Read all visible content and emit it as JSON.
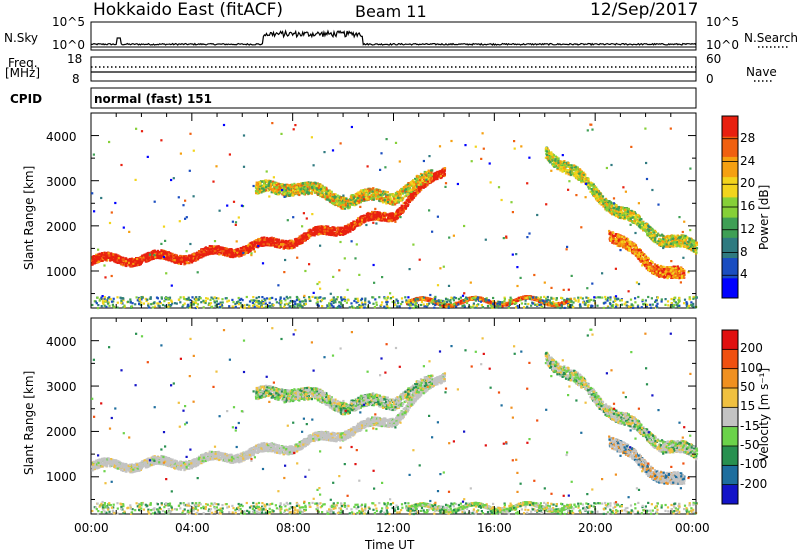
{
  "header": {
    "station": "Hokkaido East (fitACF)",
    "beam": "Beam 11",
    "date": "12/Sep/2017"
  },
  "nsky_panel": {
    "left_label": "N.Sky",
    "left_ticks": [
      "10^5",
      "10^0"
    ],
    "right_ticks": [
      "10^5",
      "10^0"
    ],
    "right_label": "N.Search"
  },
  "freq_panel": {
    "left_label_line1": "Freq.",
    "left_label_line2": "[MHz]",
    "left_ticks": [
      "18",
      "8"
    ],
    "right_ticks": [
      "60",
      "0"
    ],
    "right_label": "Nave"
  },
  "cpid_panel": {
    "left_label": "CPID",
    "value": "normal (fast) 151"
  },
  "power_panel": {
    "ylabel": "Slant Range [km]",
    "yticks": [
      "4000",
      "3000",
      "2000",
      "1000"
    ],
    "colorbar_label": "Power [dB]",
    "colorbar_ticks": [
      "28",
      "24",
      "20",
      "16",
      "12",
      "8",
      "4"
    ],
    "colors": [
      "#0000ff",
      "#1a4dc0",
      "#2f7a80",
      "#3f9f55",
      "#86d038",
      "#f2d41c",
      "#f5a010",
      "#f06010",
      "#e82010"
    ]
  },
  "velocity_panel": {
    "ylabel": "Slant Range [km]",
    "yticks": [
      "4000",
      "3000",
      "2000",
      "1000"
    ],
    "colorbar_label": "Velocity [m s⁻¹]",
    "colorbar_ticks": [
      "200",
      "100",
      "50",
      "15",
      "-15",
      "-50",
      "-100",
      "-200"
    ],
    "colors": [
      "#1414c8",
      "#1e6e9e",
      "#289050",
      "#6bd34a",
      "#c3c3c3",
      "#f0c040",
      "#f09020",
      "#f05010",
      "#e01010"
    ]
  },
  "x_axis": {
    "ticks": [
      "00:00",
      "04:00",
      "08:00",
      "12:00",
      "16:00",
      "20:00",
      "00:00"
    ],
    "label": "Time UT"
  },
  "chart_data": {
    "type": "heatmap",
    "x_range_hours": [
      0,
      24
    ],
    "y_range_km": [
      180,
      4500
    ],
    "power_range_db": [
      0,
      32
    ],
    "velocity_range_ms": [
      -250,
      250
    ],
    "scatter_bands_power": [
      {
        "x": [
          0,
          4,
          8,
          12,
          14
        ],
        "y": [
          1250,
          1350,
          1700,
          2300,
          3300
        ],
        "power": 30
      },
      {
        "x": [
          6.5,
          8,
          10,
          12,
          13.5
        ],
        "y": [
          2800,
          2900,
          2600,
          2700,
          3100
        ],
        "power": 18
      },
      {
        "x": [
          18,
          19.5,
          21,
          22.5,
          24
        ],
        "y": [
          3700,
          3000,
          2300,
          1800,
          1500
        ],
        "power": 20
      },
      {
        "x": [
          20.5,
          22,
          23.5
        ],
        "y": [
          1900,
          1200,
          900
        ],
        "power": 26
      },
      {
        "x": [
          12.5,
          15,
          17,
          19
        ],
        "y": [
          330,
          340,
          360,
          350
        ],
        "power": 26
      }
    ]
  }
}
